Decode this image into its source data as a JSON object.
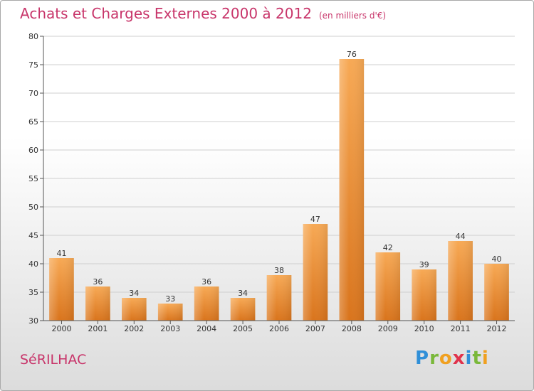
{
  "header": {
    "title": "Achats et Charges Externes 2000 à 2012",
    "subtitle": "(en milliers d'€)"
  },
  "footer": {
    "commune": "SéRILHAC",
    "logo_letters": [
      "P",
      "r",
      "o",
      "x",
      "i",
      "t",
      "i"
    ],
    "logo_colors": [
      "#2f8fd8",
      "#7ab83a",
      "#f0a020",
      "#e0334c",
      "#2f8fd8",
      "#7ab83a",
      "#f0a020"
    ]
  },
  "colors": {
    "bar_light": "#f7a955",
    "bar_dark": "#d9741c",
    "title": "#c8356a",
    "grid": "#cfcfcf"
  },
  "chart_data": {
    "type": "bar",
    "title": "Achats et Charges Externes 2000 à 2012",
    "subtitle": "(en milliers d'€)",
    "categories": [
      "2000",
      "2001",
      "2002",
      "2003",
      "2004",
      "2005",
      "2006",
      "2007",
      "2008",
      "2009",
      "2010",
      "2011",
      "2012"
    ],
    "values": [
      41,
      36,
      34,
      33,
      36,
      34,
      38,
      47,
      76,
      42,
      39,
      44,
      40
    ],
    "data_labels": [
      "41",
      "36",
      "34",
      "33",
      "36",
      "34",
      "38",
      "47",
      "76",
      "42",
      "39",
      "44",
      "40"
    ],
    "ylim": [
      30,
      80
    ],
    "yticks": [
      30,
      35,
      40,
      45,
      50,
      55,
      60,
      65,
      70,
      75,
      80
    ],
    "ytick_labels": [
      "30",
      "35",
      "40",
      "45",
      "50",
      "55",
      "60",
      "65",
      "70",
      "75",
      "80"
    ],
    "grid": true,
    "legend": "none"
  }
}
